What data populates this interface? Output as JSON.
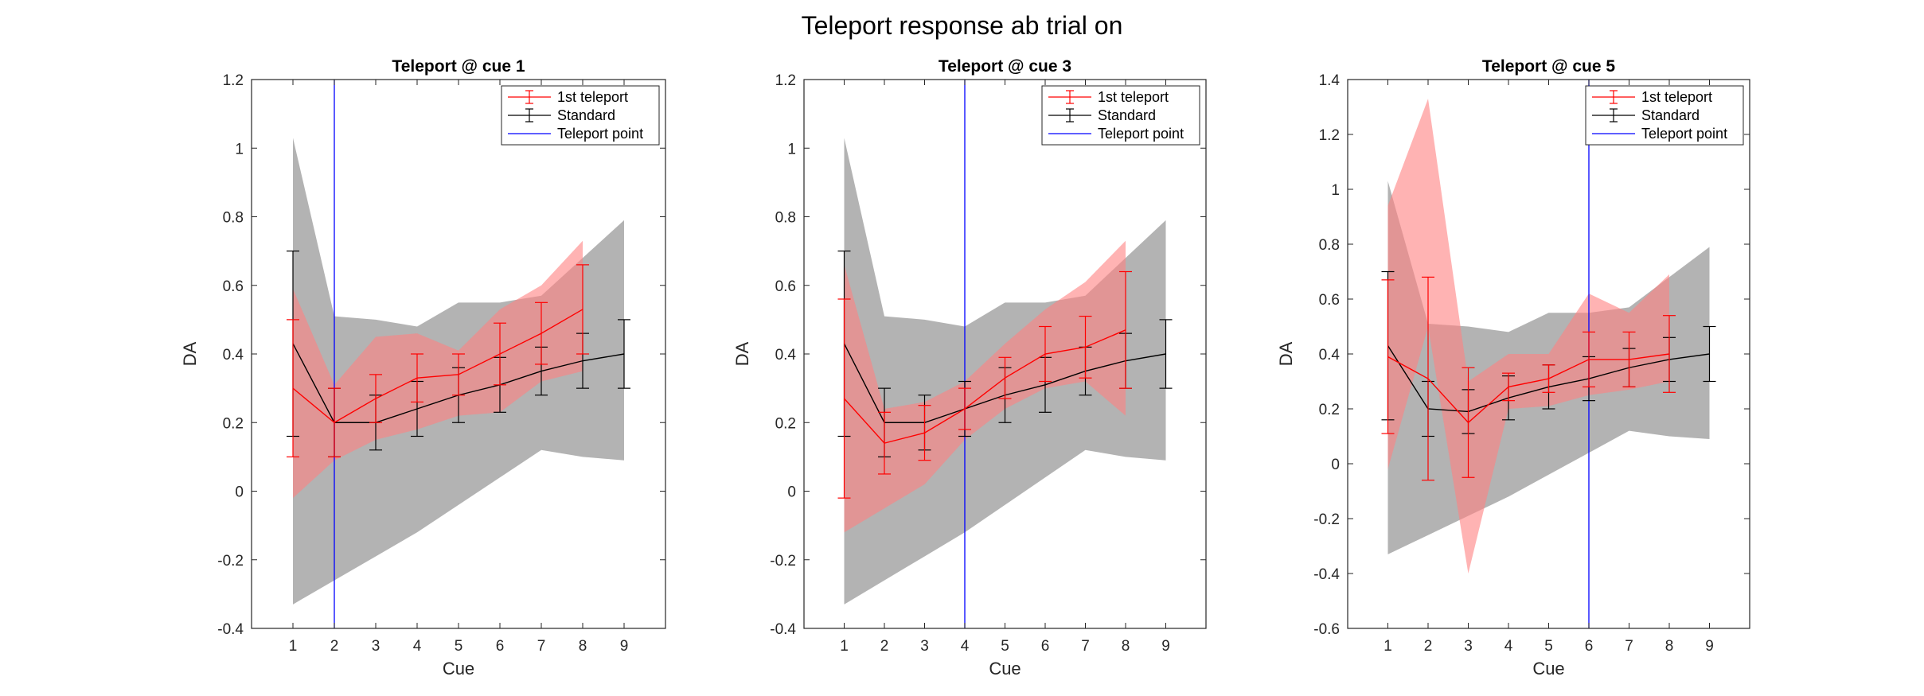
{
  "figure": {
    "title": "Teleport response ab trial on"
  },
  "chart_data": [
    {
      "type": "line",
      "title": "Teleport @ cue 1",
      "xlabel": "Cue",
      "ylabel": "DA",
      "xlim": [
        0,
        10
      ],
      "ylim": [
        -0.4,
        1.2
      ],
      "xticks": [
        1,
        2,
        3,
        4,
        5,
        6,
        7,
        8,
        9
      ],
      "yticks": [
        -0.4,
        -0.2,
        0,
        0.2,
        0.4,
        0.6,
        0.8,
        1,
        1.2
      ],
      "legend": [
        "1st teleport",
        "Standard",
        "Teleport point"
      ],
      "legend_position": "top-right",
      "teleport_point": 2,
      "series": [
        {
          "name": "1st teleport",
          "color": "#ff0000",
          "x": [
            1,
            2,
            3,
            4,
            5,
            6,
            7,
            8
          ],
          "y": [
            0.3,
            0.2,
            0.27,
            0.33,
            0.34,
            0.4,
            0.46,
            0.53
          ],
          "err": [
            0.2,
            0.1,
            0.07,
            0.07,
            0.06,
            0.09,
            0.09,
            0.13
          ],
          "band_low": [
            -0.02,
            0.09,
            0.15,
            0.18,
            0.22,
            0.23,
            0.32,
            0.35
          ],
          "band_high": [
            0.59,
            0.31,
            0.45,
            0.46,
            0.41,
            0.53,
            0.6,
            0.73
          ]
        },
        {
          "name": "Standard",
          "color": "#000000",
          "x": [
            1,
            2,
            3,
            4,
            5,
            6,
            7,
            8,
            9
          ],
          "y": [
            0.43,
            0.2,
            0.2,
            0.24,
            0.28,
            0.31,
            0.35,
            0.38,
            0.4
          ],
          "err": [
            0.27,
            0.1,
            0.08,
            0.08,
            0.08,
            0.08,
            0.07,
            0.08,
            0.1
          ],
          "band_low": [
            -0.33,
            -0.26,
            -0.19,
            -0.12,
            -0.04,
            0.04,
            0.12,
            0.1,
            0.09
          ],
          "band_high": [
            1.03,
            0.51,
            0.5,
            0.48,
            0.55,
            0.55,
            0.57,
            0.68,
            0.79
          ]
        }
      ]
    },
    {
      "type": "line",
      "title": "Teleport @ cue 3",
      "xlabel": "Cue",
      "ylabel": "DA",
      "xlim": [
        0,
        10
      ],
      "ylim": [
        -0.4,
        1.2
      ],
      "xticks": [
        1,
        2,
        3,
        4,
        5,
        6,
        7,
        8,
        9
      ],
      "yticks": [
        -0.4,
        -0.2,
        0,
        0.2,
        0.4,
        0.6,
        0.8,
        1,
        1.2
      ],
      "legend": [
        "1st teleport",
        "Standard",
        "Teleport point"
      ],
      "legend_position": "top-right",
      "teleport_point": 4,
      "series": [
        {
          "name": "1st teleport",
          "color": "#ff0000",
          "x": [
            1,
            2,
            3,
            4,
            5,
            6,
            7,
            8
          ],
          "y": [
            0.27,
            0.14,
            0.17,
            0.24,
            0.33,
            0.4,
            0.42,
            0.47
          ],
          "err": [
            0.29,
            0.09,
            0.08,
            0.06,
            0.06,
            0.08,
            0.09,
            0.17
          ],
          "band_low": [
            -0.12,
            -0.05,
            0.02,
            0.15,
            0.24,
            0.3,
            0.32,
            0.22
          ],
          "band_high": [
            0.66,
            0.24,
            0.26,
            0.32,
            0.43,
            0.53,
            0.61,
            0.73
          ]
        },
        {
          "name": "Standard",
          "color": "#000000",
          "x": [
            1,
            2,
            3,
            4,
            5,
            6,
            7,
            8,
            9
          ],
          "y": [
            0.43,
            0.2,
            0.2,
            0.24,
            0.28,
            0.31,
            0.35,
            0.38,
            0.4
          ],
          "err": [
            0.27,
            0.1,
            0.08,
            0.08,
            0.08,
            0.08,
            0.07,
            0.08,
            0.1
          ],
          "band_low": [
            -0.33,
            -0.26,
            -0.19,
            -0.12,
            -0.04,
            0.04,
            0.12,
            0.1,
            0.09
          ],
          "band_high": [
            1.03,
            0.51,
            0.5,
            0.48,
            0.55,
            0.55,
            0.57,
            0.68,
            0.79
          ]
        }
      ]
    },
    {
      "type": "line",
      "title": "Teleport @ cue 5",
      "xlabel": "Cue",
      "ylabel": "DA",
      "xlim": [
        0,
        10
      ],
      "ylim": [
        -0.6,
        1.4
      ],
      "xticks": [
        1,
        2,
        3,
        4,
        5,
        6,
        7,
        8,
        9
      ],
      "yticks": [
        -0.6,
        -0.4,
        -0.2,
        0,
        0.2,
        0.4,
        0.6,
        0.8,
        1,
        1.2,
        1.4
      ],
      "legend": [
        "1st teleport",
        "Standard",
        "Teleport point"
      ],
      "legend_position": "top-right",
      "teleport_point": 6,
      "series": [
        {
          "name": "1st teleport",
          "color": "#ff0000",
          "x": [
            1,
            2,
            3,
            4,
            5,
            6,
            7,
            8
          ],
          "y": [
            0.39,
            0.31,
            0.15,
            0.28,
            0.31,
            0.38,
            0.38,
            0.4
          ],
          "err": [
            0.28,
            0.37,
            0.2,
            0.05,
            0.05,
            0.1,
            0.1,
            0.14
          ],
          "band_low": [
            -0.02,
            0.5,
            -0.4,
            0.2,
            0.21,
            0.25,
            0.27,
            0.3
          ],
          "band_high": [
            0.94,
            1.33,
            0.3,
            0.4,
            0.4,
            0.62,
            0.55,
            0.69
          ]
        },
        {
          "name": "Standard",
          "color": "#000000",
          "x": [
            1,
            2,
            3,
            4,
            5,
            6,
            7,
            8,
            9
          ],
          "y": [
            0.43,
            0.2,
            0.19,
            0.24,
            0.28,
            0.31,
            0.35,
            0.38,
            0.4
          ],
          "err": [
            0.27,
            0.1,
            0.08,
            0.08,
            0.08,
            0.08,
            0.07,
            0.08,
            0.1
          ],
          "band_low": [
            -0.33,
            -0.26,
            -0.19,
            -0.12,
            -0.04,
            0.04,
            0.12,
            0.1,
            0.09
          ],
          "band_high": [
            1.03,
            0.51,
            0.5,
            0.48,
            0.55,
            0.55,
            0.57,
            0.68,
            0.79
          ]
        }
      ]
    }
  ]
}
